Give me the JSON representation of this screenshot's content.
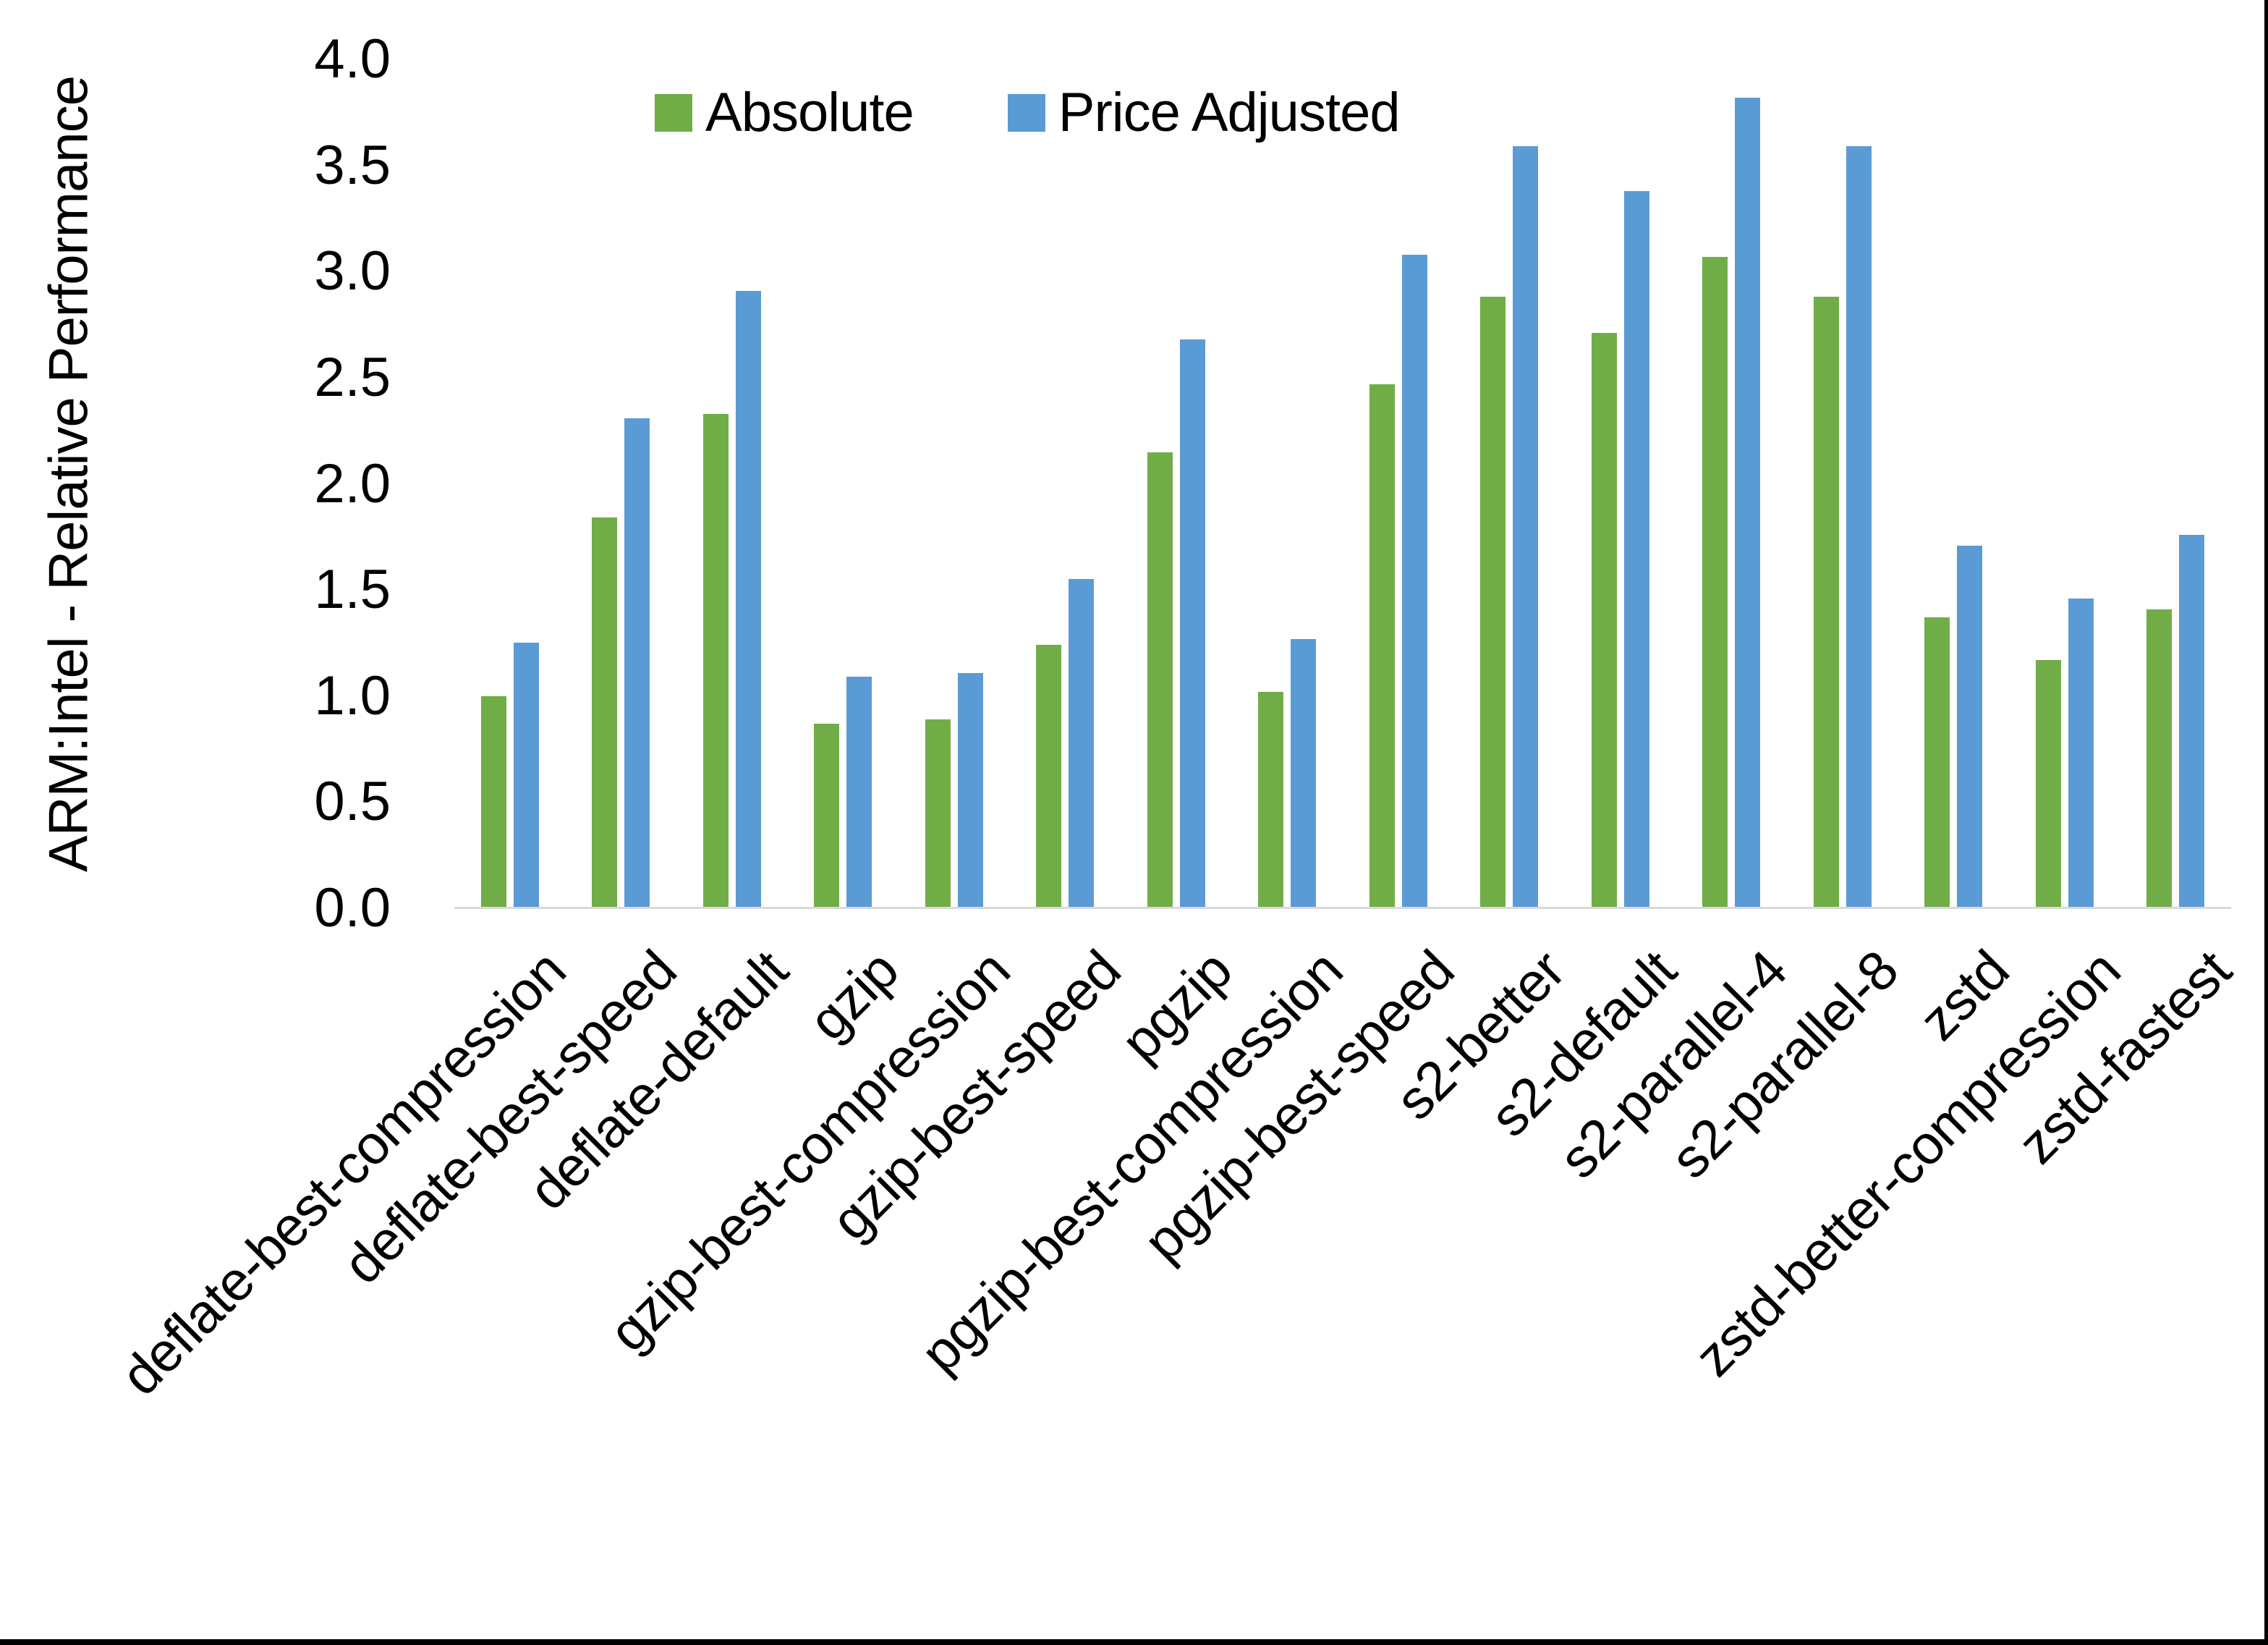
{
  "chart_data": {
    "type": "bar",
    "title": "",
    "xlabel": "",
    "ylabel": "ARM:Intel - Relative Performance",
    "ylim": [
      0.0,
      4.0
    ],
    "ytick_step": 0.5,
    "ytick_labels": [
      "0.0",
      "0.5",
      "1.0",
      "1.5",
      "2.0",
      "2.5",
      "3.0",
      "3.5",
      "4.0"
    ],
    "grid": false,
    "legend_position": "top-center",
    "categories": [
      "deflate-best-compression",
      "deflate-best-speed",
      "deflate-default",
      "gzip",
      "gzip-best-compression",
      "gzip-best-speed",
      "pgzip",
      "pgzip-best-compression",
      "pgzip-best-speed",
      "s2-better",
      "s2-default",
      "s2-parallel-4",
      "s2-parallel-8",
      "zstd",
      "zstd-better-compression",
      "zstd-fastest"
    ],
    "series": [
      {
        "name": "Absolute",
        "color": "#70AD47",
        "values": [
          1.0,
          1.84,
          2.33,
          0.87,
          0.89,
          1.24,
          2.15,
          1.02,
          2.47,
          2.88,
          2.71,
          3.07,
          2.88,
          1.37,
          1.17,
          1.41
        ]
      },
      {
        "name": "Price Adjusted",
        "color": "#5B9BD5",
        "values": [
          1.25,
          2.31,
          2.91,
          1.09,
          1.11,
          1.55,
          2.68,
          1.27,
          3.08,
          3.59,
          3.38,
          3.82,
          3.59,
          1.71,
          1.46,
          1.76
        ]
      }
    ],
    "axis_line_color": "#D9D9D9",
    "text_color": "#000000",
    "border_color": "#000000"
  }
}
